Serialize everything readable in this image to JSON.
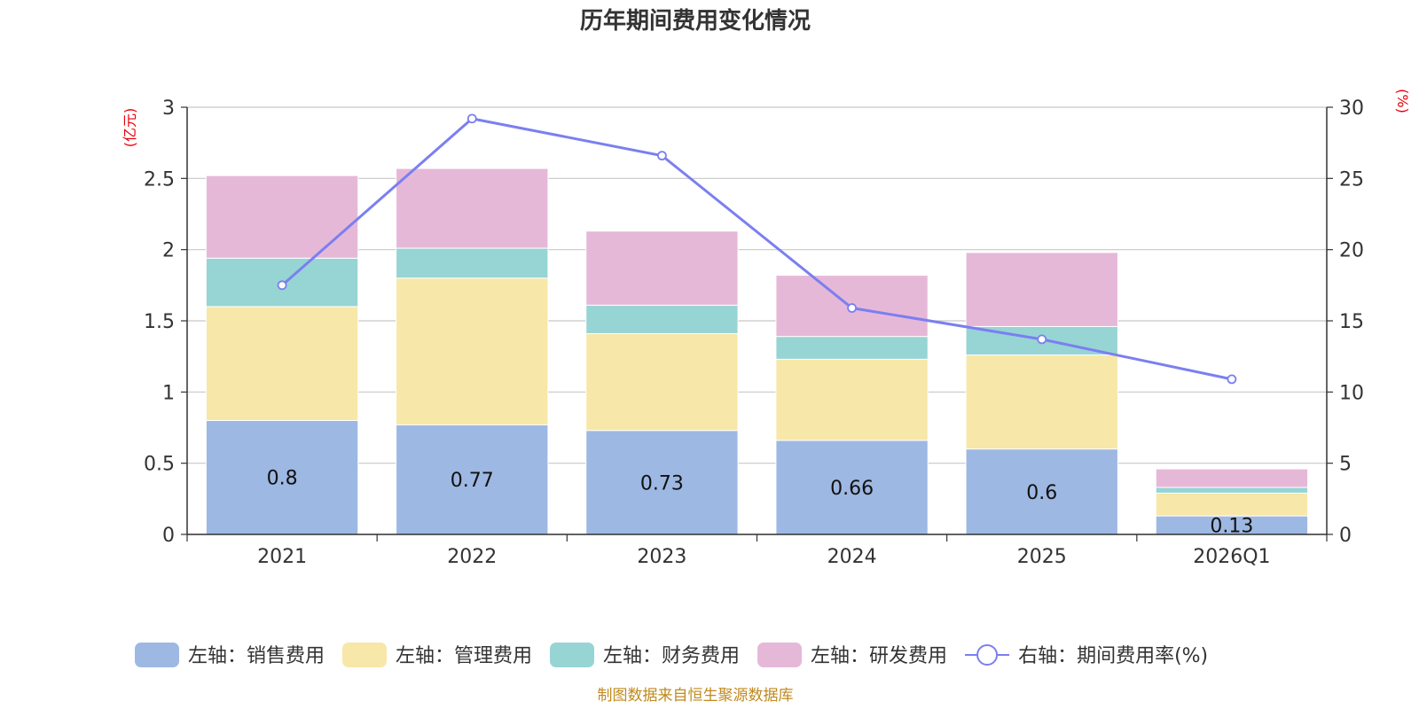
{
  "chart_data": {
    "type": "bar",
    "title": "历年期间费用变化情况",
    "categories": [
      "2021",
      "2022",
      "2023",
      "2024",
      "2025",
      "2026Q1"
    ],
    "left_axis": {
      "unit": "(亿元)",
      "ylim": [
        0,
        3
      ],
      "ticks": [
        "0",
        "0.5",
        "1",
        "1.5",
        "2",
        "2.5",
        "3"
      ]
    },
    "right_axis": {
      "unit": "(%)",
      "ylim": [
        0,
        30
      ],
      "ticks": [
        "0",
        "5",
        "10",
        "15",
        "20",
        "25",
        "30"
      ]
    },
    "series": [
      {
        "name": "左轴：销售费用",
        "axis": "left",
        "color": "#9db8e2",
        "values": [
          0.8,
          0.77,
          0.73,
          0.66,
          0.6,
          0.13
        ],
        "labels": [
          "0.8",
          "0.77",
          "0.73",
          "0.66",
          "0.6",
          "0.13"
        ]
      },
      {
        "name": "左轴：管理费用",
        "axis": "left",
        "color": "#f7e7a8",
        "values": [
          0.8,
          1.03,
          0.68,
          0.57,
          0.66,
          0.16
        ]
      },
      {
        "name": "左轴：财务费用",
        "axis": "left",
        "color": "#97d4d4",
        "values": [
          0.34,
          0.21,
          0.2,
          0.16,
          0.2,
          0.04
        ]
      },
      {
        "name": "左轴：研发费用",
        "axis": "left",
        "color": "#e6b8d8",
        "values": [
          0.58,
          0.56,
          0.52,
          0.43,
          0.52,
          0.13
        ]
      },
      {
        "name": "右轴：期间费用率(%)",
        "axis": "right",
        "type": "line",
        "color": "#7b7ff0",
        "values": [
          17.5,
          29.2,
          26.6,
          15.9,
          13.7,
          10.9
        ]
      }
    ],
    "grid": true,
    "legend": "bottom"
  },
  "footer": {
    "source": "制图数据来自恒生聚源数据库"
  }
}
